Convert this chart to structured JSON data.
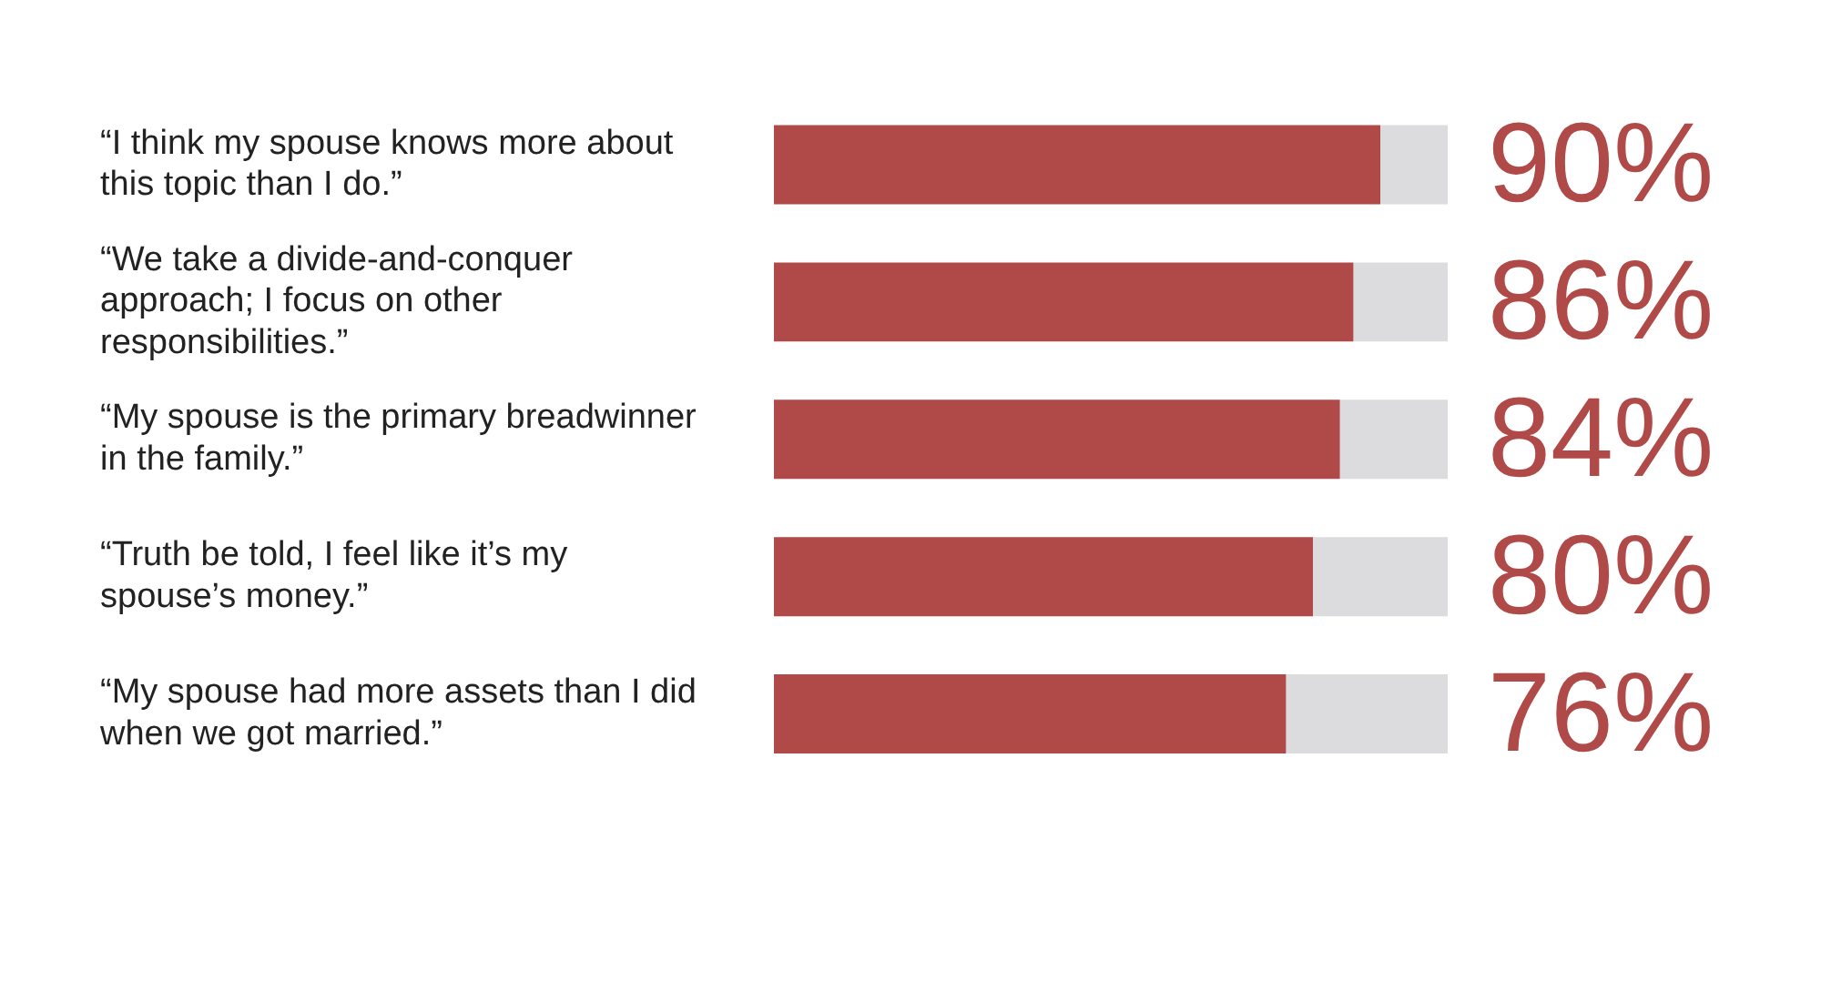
{
  "chart_data": {
    "type": "bar",
    "orientation": "horizontal",
    "stacked": true,
    "categories": [
      "“I think my spouse knows more about this topic than I do.”",
      "“We take a divide-and-conquer approach; I focus on other responsibilities.”",
      "“My spouse is the primary breadwinner in the family.”",
      "“Truth be told, I feel like it’s my spouse’s money.”",
      "“My spouse had more assets than I did when we got married.”"
    ],
    "series": [
      {
        "color": "#b04a48",
        "values": [
          90,
          86,
          84,
          80,
          76
        ],
        "value_labels": [
          "90%",
          "86%",
          "84%",
          "80%",
          "76%"
        ]
      },
      {
        "color": "#dcdcde",
        "values": [
          10,
          14,
          16,
          20,
          24
        ]
      }
    ],
    "xlim": [
      0,
      100
    ],
    "legend": false,
    "tick_labels": "y"
  }
}
